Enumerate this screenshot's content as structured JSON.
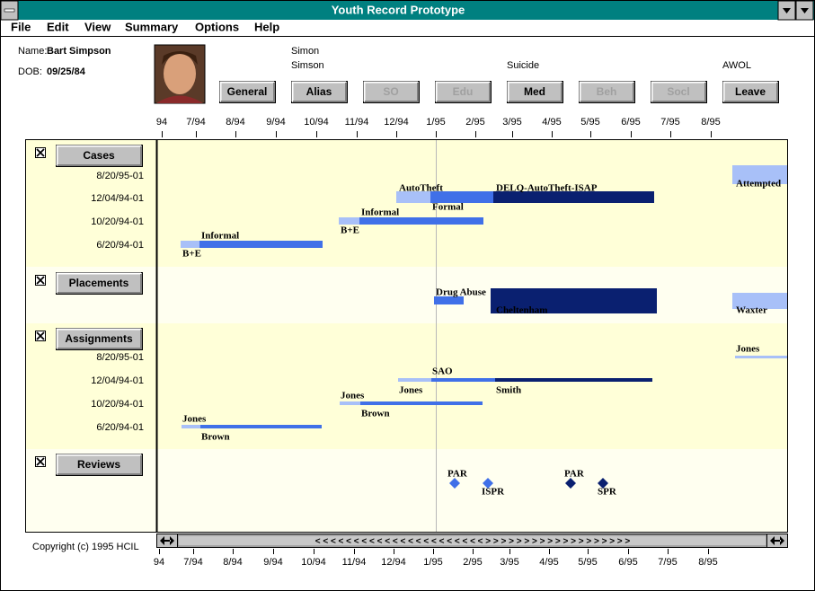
{
  "window": {
    "title": "Youth Record Prototype"
  },
  "menu": [
    "File",
    "Edit",
    "View",
    "Summary",
    "Options",
    "Help"
  ],
  "person": {
    "name_label": "Name:",
    "name": "Bart Simpson",
    "dob_label": "DOB:",
    "dob": "09/25/84"
  },
  "button_notes": [
    "Simon",
    "Simson",
    "Suicide",
    "AWOL"
  ],
  "buttons": [
    {
      "label": "General",
      "enabled": true
    },
    {
      "label": "Alias",
      "enabled": true
    },
    {
      "label": "SO",
      "enabled": false
    },
    {
      "label": "Edu",
      "enabled": false
    },
    {
      "label": "Med",
      "enabled": true
    },
    {
      "label": "Beh",
      "enabled": false
    },
    {
      "label": "Socl",
      "enabled": false
    },
    {
      "label": "Leave",
      "enabled": true
    }
  ],
  "ticks": [
    "94",
    "7/94",
    "8/94",
    "9/94",
    "10/94",
    "11/94",
    "12/94",
    "1/95",
    "2/95",
    "3/95",
    "4/95",
    "5/95",
    "6/95",
    "7/95",
    "8/95"
  ],
  "sections": [
    {
      "name": "Cases",
      "rows": [
        "8/20/95-01",
        "12/04/94-01",
        "10/20/94-01",
        "6/20/94-01"
      ],
      "labels": [
        "Informal",
        "B+E",
        "Informal",
        "B+E",
        "AutoTheft",
        "DELQ-AutoTheft-ISAP",
        "Formal",
        "Attempted"
      ]
    },
    {
      "name": "Placements",
      "labels": [
        "Drug Abuse",
        "Cheltenham",
        "Waxter"
      ]
    },
    {
      "name": "Assignments",
      "rows": [
        "8/20/95-01",
        "12/04/94-01",
        "10/20/94-01",
        "6/20/94-01"
      ],
      "labels": [
        "Jones",
        "Brown",
        "Jones",
        "Brown",
        "SAO",
        "Jones",
        "Smith",
        "Jones"
      ]
    },
    {
      "name": "Reviews",
      "labels": [
        "PAR",
        "ISPR",
        "PAR",
        "SPR"
      ]
    }
  ],
  "copyright": "Copyright (c) 1995 HCIL",
  "scroll_text": "< < < < < < < < < < < < < < < < < < < < < < > > > > > > > > > > > > > > > > > > >"
}
